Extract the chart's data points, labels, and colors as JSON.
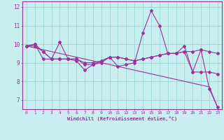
{
  "title": "",
  "xlabel": "Windchill (Refroidissement éolien,°C)",
  "ylabel": "",
  "xlim": [
    -0.5,
    23.5
  ],
  "ylim": [
    6.5,
    12.3
  ],
  "yticks": [
    7,
    8,
    9,
    10,
    11,
    12
  ],
  "xticks": [
    0,
    1,
    2,
    3,
    4,
    5,
    6,
    7,
    8,
    9,
    10,
    11,
    12,
    13,
    14,
    15,
    16,
    17,
    18,
    19,
    20,
    21,
    22,
    23
  ],
  "bg_color": "#c8eef0",
  "line_color": "#993399",
  "grid_color": "#a0d8d8",
  "line1": [
    9.9,
    10.0,
    9.2,
    9.2,
    10.1,
    9.2,
    9.1,
    8.6,
    8.9,
    9.1,
    9.3,
    8.8,
    8.9,
    9.0,
    10.6,
    11.8,
    11.0,
    9.5,
    9.5,
    9.9,
    8.5,
    9.7,
    7.6,
    6.6
  ],
  "line2": [
    9.9,
    10.0,
    9.6,
    9.2,
    9.2,
    9.2,
    9.2,
    9.0,
    9.0,
    9.1,
    9.3,
    9.3,
    9.2,
    9.1,
    9.2,
    9.3,
    9.4,
    9.5,
    9.5,
    9.6,
    9.6,
    9.7,
    9.6,
    9.5
  ],
  "line3": [
    9.9,
    9.9,
    9.6,
    9.2,
    9.2,
    9.2,
    9.2,
    8.9,
    8.9,
    9.0,
    9.3,
    9.3,
    9.2,
    9.1,
    9.2,
    9.3,
    9.4,
    9.5,
    9.5,
    9.6,
    8.5,
    8.5,
    8.5,
    8.4
  ],
  "trend": [
    9.9,
    9.8,
    9.7,
    9.6,
    9.5,
    9.4,
    9.3,
    9.2,
    9.1,
    9.0,
    8.9,
    8.8,
    8.7,
    8.6,
    8.5,
    8.4,
    8.3,
    8.2,
    8.1,
    8.0,
    7.9,
    7.8,
    7.7,
    6.6
  ]
}
